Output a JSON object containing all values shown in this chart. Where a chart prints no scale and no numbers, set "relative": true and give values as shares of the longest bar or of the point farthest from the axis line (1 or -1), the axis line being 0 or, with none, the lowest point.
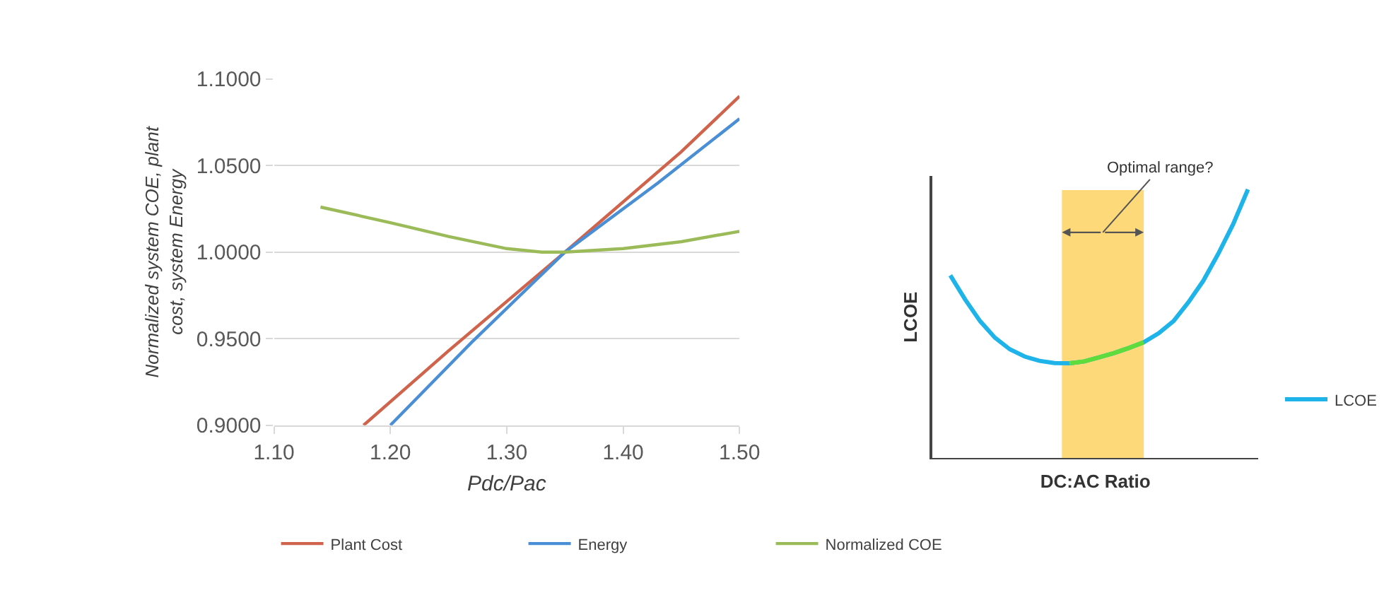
{
  "chart_data": [
    {
      "type": "line",
      "xlabel": "Pdc/Pac",
      "ylabel": "Normalized system COE, plant cost, system Energy",
      "xlim": [
        1.1,
        1.5
      ],
      "xticks": [
        {
          "value": 1.1,
          "label": "1.10"
        },
        {
          "value": 1.2,
          "label": "1.20"
        },
        {
          "value": 1.3,
          "label": "1.30"
        },
        {
          "value": 1.4,
          "label": "1.40"
        },
        {
          "value": 1.5,
          "label": "1.50"
        }
      ],
      "ylim": [
        0.9,
        1.1
      ],
      "yticks": [
        {
          "value": 0.9,
          "label": "0.9000"
        },
        {
          "value": 0.95,
          "label": "0.9500"
        },
        {
          "value": 1.0,
          "label": "1.0000"
        },
        {
          "value": 1.05,
          "label": "1.0500"
        },
        {
          "value": 1.1,
          "label": "1.1000"
        }
      ],
      "grid": "y",
      "legend": "bottom",
      "line_style": "solid",
      "marker": "none",
      "series": [
        {
          "name": "Plant Cost",
          "color": "#d0634c",
          "x": [
            1.177,
            1.25,
            1.35,
            1.45,
            1.5
          ],
          "values": [
            0.9,
            0.943,
            1.0,
            1.058,
            1.09
          ]
        },
        {
          "name": "Energy",
          "color": "#4a8ed6",
          "x": [
            1.2,
            1.27,
            1.35,
            1.43,
            1.5
          ],
          "values": [
            0.9,
            0.948,
            1.0,
            1.04,
            1.077
          ]
        },
        {
          "name": "Normalized COE",
          "color": "#9bbb59",
          "x": [
            1.14,
            1.2,
            1.25,
            1.3,
            1.33,
            1.35,
            1.4,
            1.45,
            1.5
          ],
          "values": [
            1.026,
            1.017,
            1.009,
            1.002,
            1.0,
            1.0,
            1.002,
            1.006,
            1.012
          ]
        }
      ]
    },
    {
      "type": "line",
      "relative": true,
      "xlabel": "DC:AC Ratio",
      "ylabel": "LCOE",
      "categories": [
        null,
        null,
        null,
        null,
        null,
        null,
        null,
        null,
        null,
        null,
        null,
        null,
        null,
        null,
        null,
        null,
        null,
        null,
        null,
        null,
        null
      ],
      "grid": false,
      "legend": "right",
      "line_style": "solid",
      "marker": "none",
      "series": [
        {
          "name": "LCOE",
          "color": "#1eb4ea",
          "values": [
            0.68,
            0.59,
            0.51,
            0.448,
            0.405,
            0.378,
            0.362,
            0.354,
            0.353,
            0.36,
            0.375,
            0.391,
            0.41,
            0.431,
            0.465,
            0.51,
            0.58,
            0.66,
            0.76,
            0.87,
            1.0
          ]
        },
        {
          "color": "#5ddc3c",
          "values": [
            null,
            null,
            null,
            null,
            null,
            null,
            null,
            null,
            0.353,
            0.36,
            0.375,
            0.391,
            0.41,
            0.431,
            null,
            null,
            null,
            null,
            null,
            null,
            null
          ]
        }
      ],
      "annotations": [
        "Optimal range?"
      ]
    }
  ]
}
